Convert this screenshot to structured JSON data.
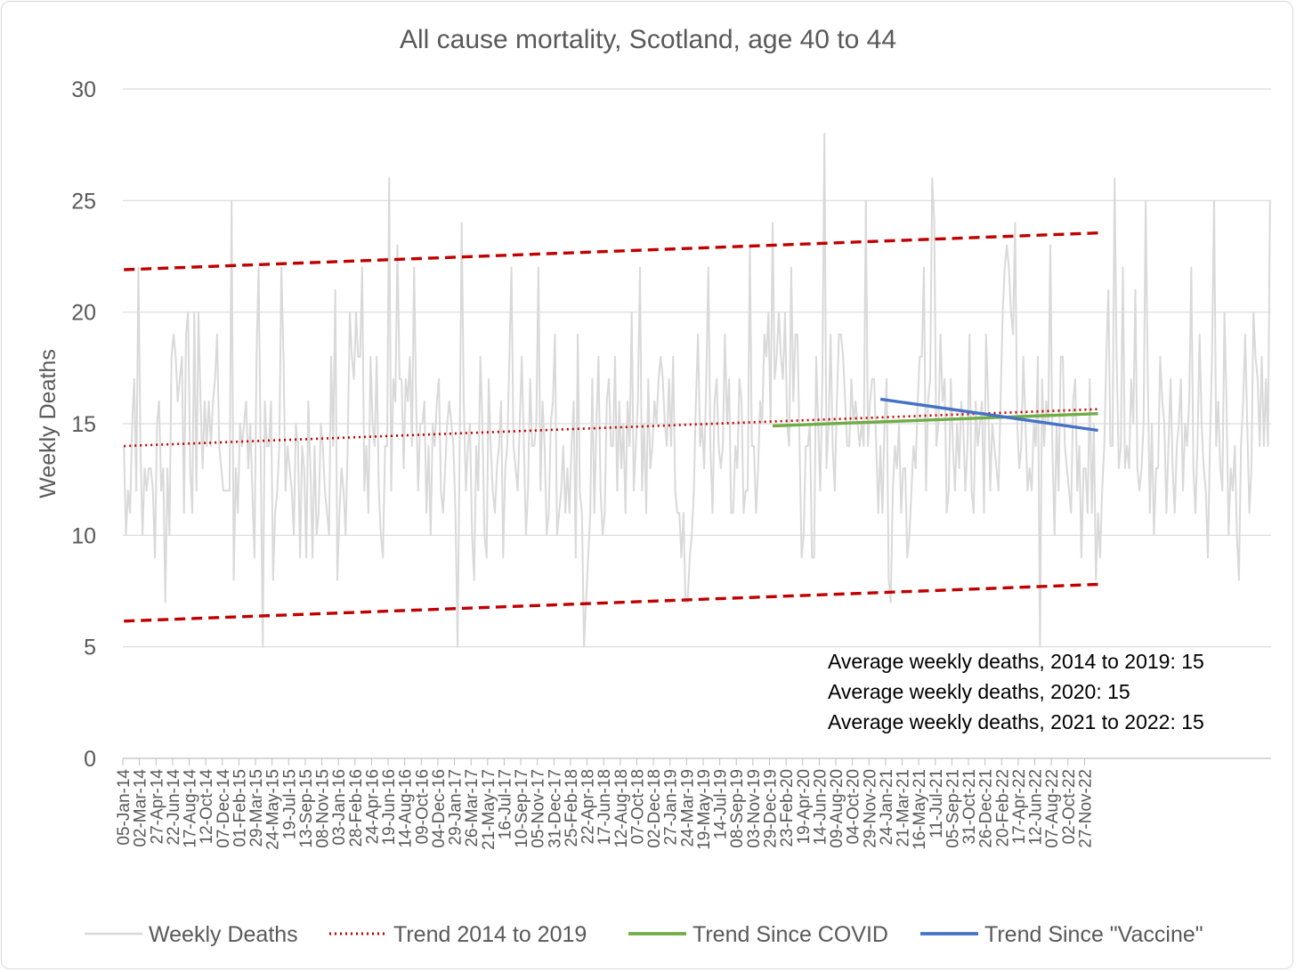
{
  "chart_data": {
    "type": "line",
    "title": "All cause mortality, Scotland, age 40 to 44",
    "xlabel": "",
    "ylabel": "Weekly Deaths",
    "ylim": [
      0,
      30
    ],
    "yticks": [
      0,
      5,
      10,
      15,
      20,
      25,
      30
    ],
    "grid": true,
    "legend_position": "bottom",
    "x_tick_labels": [
      "05-Jan-14",
      "02-Mar-14",
      "27-Apr-14",
      "22-Jun-14",
      "17-Aug-14",
      "12-Oct-14",
      "07-Dec-14",
      "01-Feb-15",
      "29-Mar-15",
      "24-May-15",
      "19-Jul-15",
      "13-Sep-15",
      "08-Nov-15",
      "03-Jan-16",
      "28-Feb-16",
      "24-Apr-16",
      "19-Jun-16",
      "14-Aug-16",
      "09-Oct-16",
      "04-Dec-16",
      "29-Jan-17",
      "26-Mar-17",
      "21-May-17",
      "16-Jul-17",
      "10-Sep-17",
      "05-Nov-17",
      "31-Dec-17",
      "25-Feb-18",
      "22-Apr-18",
      "17-Jun-18",
      "12-Aug-18",
      "07-Oct-18",
      "02-Dec-18",
      "27-Jan-19",
      "24-Mar-19",
      "19-May-19",
      "14-Jul-19",
      "08-Sep-19",
      "03-Nov-19",
      "29-Dec-19",
      "23-Feb-20",
      "19-Apr-20",
      "14-Jun-20",
      "09-Aug-20",
      "04-Oct-20",
      "29-Nov-20",
      "24-Jan-21",
      "21-Mar-21",
      "16-May-21",
      "11-Jul-21",
      "05-Sep-21",
      "31-Oct-21",
      "26-Dec-21",
      "20-Feb-22",
      "17-Apr-22",
      "12-Jun-22",
      "07-Aug-22",
      "02-Oct-22",
      "27-Nov-22"
    ],
    "weeks_per_tick": 8,
    "series": [
      {
        "name": "Weekly Deaths",
        "color": "#d9d9d9",
        "style": "solid",
        "values": [
          14,
          10,
          12,
          11,
          15,
          17,
          12,
          22,
          14,
          10,
          13,
          12,
          13,
          13,
          12,
          9,
          15,
          16,
          12,
          13,
          7,
          13,
          10,
          18,
          19,
          18,
          16,
          17,
          18,
          11,
          19,
          20,
          13,
          11,
          20,
          12,
          20,
          16,
          13,
          16,
          14,
          16,
          14,
          16,
          17,
          19,
          14,
          13,
          12,
          12,
          12,
          12,
          25,
          8,
          13,
          11,
          15,
          14,
          15,
          16,
          13,
          15,
          12,
          9,
          18,
          22,
          14,
          5,
          16,
          14,
          14,
          16,
          8,
          11,
          12,
          14,
          22,
          18,
          12,
          14,
          13,
          12,
          10,
          15,
          14,
          9,
          14,
          13,
          9,
          16,
          13,
          9,
          14,
          10,
          11,
          15,
          14,
          12,
          11,
          10,
          18,
          14,
          21,
          8,
          11,
          13,
          12,
          10,
          14,
          20,
          18,
          17,
          20,
          18,
          18,
          22,
          12,
          14,
          11,
          18,
          15,
          14,
          18,
          12,
          10,
          9,
          14,
          14,
          26,
          12,
          17,
          16,
          23,
          17,
          17,
          13,
          17,
          16,
          18,
          14,
          22,
          16,
          12,
          15,
          15,
          16,
          11,
          14,
          10,
          15,
          14,
          16,
          17,
          12,
          11,
          13,
          15,
          16,
          15,
          14,
          11,
          5,
          14,
          24,
          16,
          12,
          14,
          15,
          10,
          8,
          14,
          12,
          18,
          15,
          10,
          9,
          17,
          14,
          12,
          11,
          13,
          14,
          16,
          9,
          13,
          14,
          18,
          22,
          14,
          13,
          12,
          15,
          18,
          14,
          10,
          12,
          17,
          14,
          14,
          15,
          22,
          12,
          16,
          14,
          10,
          11,
          15,
          16,
          19,
          10,
          11,
          12,
          14,
          11,
          13,
          11,
          14,
          16,
          9,
          19,
          12,
          11,
          5,
          7,
          9,
          11,
          17,
          11,
          15,
          18,
          12,
          10,
          11,
          16,
          17,
          14,
          14,
          18,
          12,
          16,
          13,
          15,
          11,
          16,
          14,
          20,
          12,
          14,
          16,
          22,
          12,
          15,
          11,
          17,
          13,
          14,
          16,
          15,
          17,
          18,
          17,
          15,
          14,
          17,
          14,
          18,
          12,
          11,
          11,
          9,
          11,
          7,
          7,
          9,
          10,
          12,
          16,
          19,
          14,
          15,
          13,
          17,
          22,
          14,
          11,
          16,
          17,
          14,
          13,
          14,
          19,
          15,
          17,
          11,
          11,
          14,
          13,
          17,
          16,
          11,
          12,
          12,
          23,
          14,
          14,
          11,
          13,
          16,
          15,
          19,
          18,
          20,
          15,
          24,
          17,
          18,
          20,
          18,
          17,
          20,
          15,
          14,
          22,
          16,
          19,
          19,
          14,
          9,
          10,
          14,
          14,
          15,
          9,
          9,
          18,
          15,
          12,
          17,
          28,
          13,
          15,
          19,
          14,
          12,
          16,
          19,
          19,
          18,
          16,
          14,
          14,
          17,
          15,
          16,
          15,
          14,
          15,
          14,
          25,
          14,
          16,
          17,
          17,
          14,
          11,
          14,
          11,
          15,
          17,
          8,
          7,
          12,
          14,
          13,
          15,
          11,
          13,
          13,
          9,
          10,
          12,
          14,
          13,
          16,
          18,
          18,
          22,
          12,
          16,
          17,
          26,
          24,
          14,
          15,
          19,
          16,
          17,
          11,
          12,
          17,
          14,
          12,
          15,
          13,
          16,
          15,
          12,
          14,
          19,
          12,
          11,
          16,
          14,
          15,
          16,
          11,
          19,
          16,
          12,
          15,
          14,
          13,
          12,
          16,
          20,
          22,
          23,
          22,
          20,
          19,
          24,
          15,
          13,
          14,
          18,
          15,
          12,
          13,
          12,
          15,
          14,
          18,
          5,
          17,
          14,
          16,
          15,
          23,
          14,
          10,
          15,
          12,
          18,
          18,
          14,
          13,
          12,
          11,
          16,
          17,
          12,
          14,
          9,
          13,
          13,
          11,
          17,
          11,
          15,
          8,
          11,
          9,
          12,
          14,
          18,
          21,
          14,
          14,
          26,
          18,
          13,
          14,
          22,
          13,
          14,
          13,
          17,
          15,
          21,
          13,
          12,
          13,
          15,
          25,
          17,
          11,
          15,
          10,
          13,
          13,
          18,
          16,
          15,
          11,
          14,
          17,
          13,
          11,
          14,
          15,
          17,
          12,
          15,
          14,
          16,
          22,
          13,
          11,
          14,
          19,
          15,
          13,
          12,
          9,
          14,
          18,
          25,
          14,
          16,
          13,
          12,
          20,
          16,
          10,
          13,
          12,
          14,
          10,
          8,
          14,
          16,
          19,
          15,
          11,
          13,
          20,
          18,
          17,
          14,
          18,
          14,
          17,
          14,
          25
        ]
      },
      {
        "name": "Trend 2014 to 2019",
        "color": "#c00000",
        "style": "dotted",
        "x": [
          0,
          470
        ],
        "values": [
          14.0,
          15.65
        ]
      },
      {
        "name": "Trend Since COVID",
        "color": "#70ad47",
        "style": "solid",
        "x": [
          313,
          470
        ],
        "values": [
          14.9,
          15.45
        ]
      },
      {
        "name": "Trend Since \"Vaccine\"",
        "color": "#4472c4",
        "style": "solid",
        "x": [
          365,
          470
        ],
        "values": [
          16.1,
          14.7
        ]
      },
      {
        "name": "",
        "color": "#c00000",
        "style": "dashed",
        "x": [
          0,
          470
        ],
        "values": [
          21.9,
          23.55
        ]
      },
      {
        "name": "",
        "color": "#c00000",
        "style": "dashed",
        "x": [
          0,
          470
        ],
        "values": [
          6.15,
          7.8
        ]
      }
    ],
    "annotations": [
      "Average weekly deaths, 2014 to 2019: 15",
      "Average weekly deaths, 2020: 15",
      "Average weekly deaths, 2021 to 2022: 15"
    ]
  }
}
